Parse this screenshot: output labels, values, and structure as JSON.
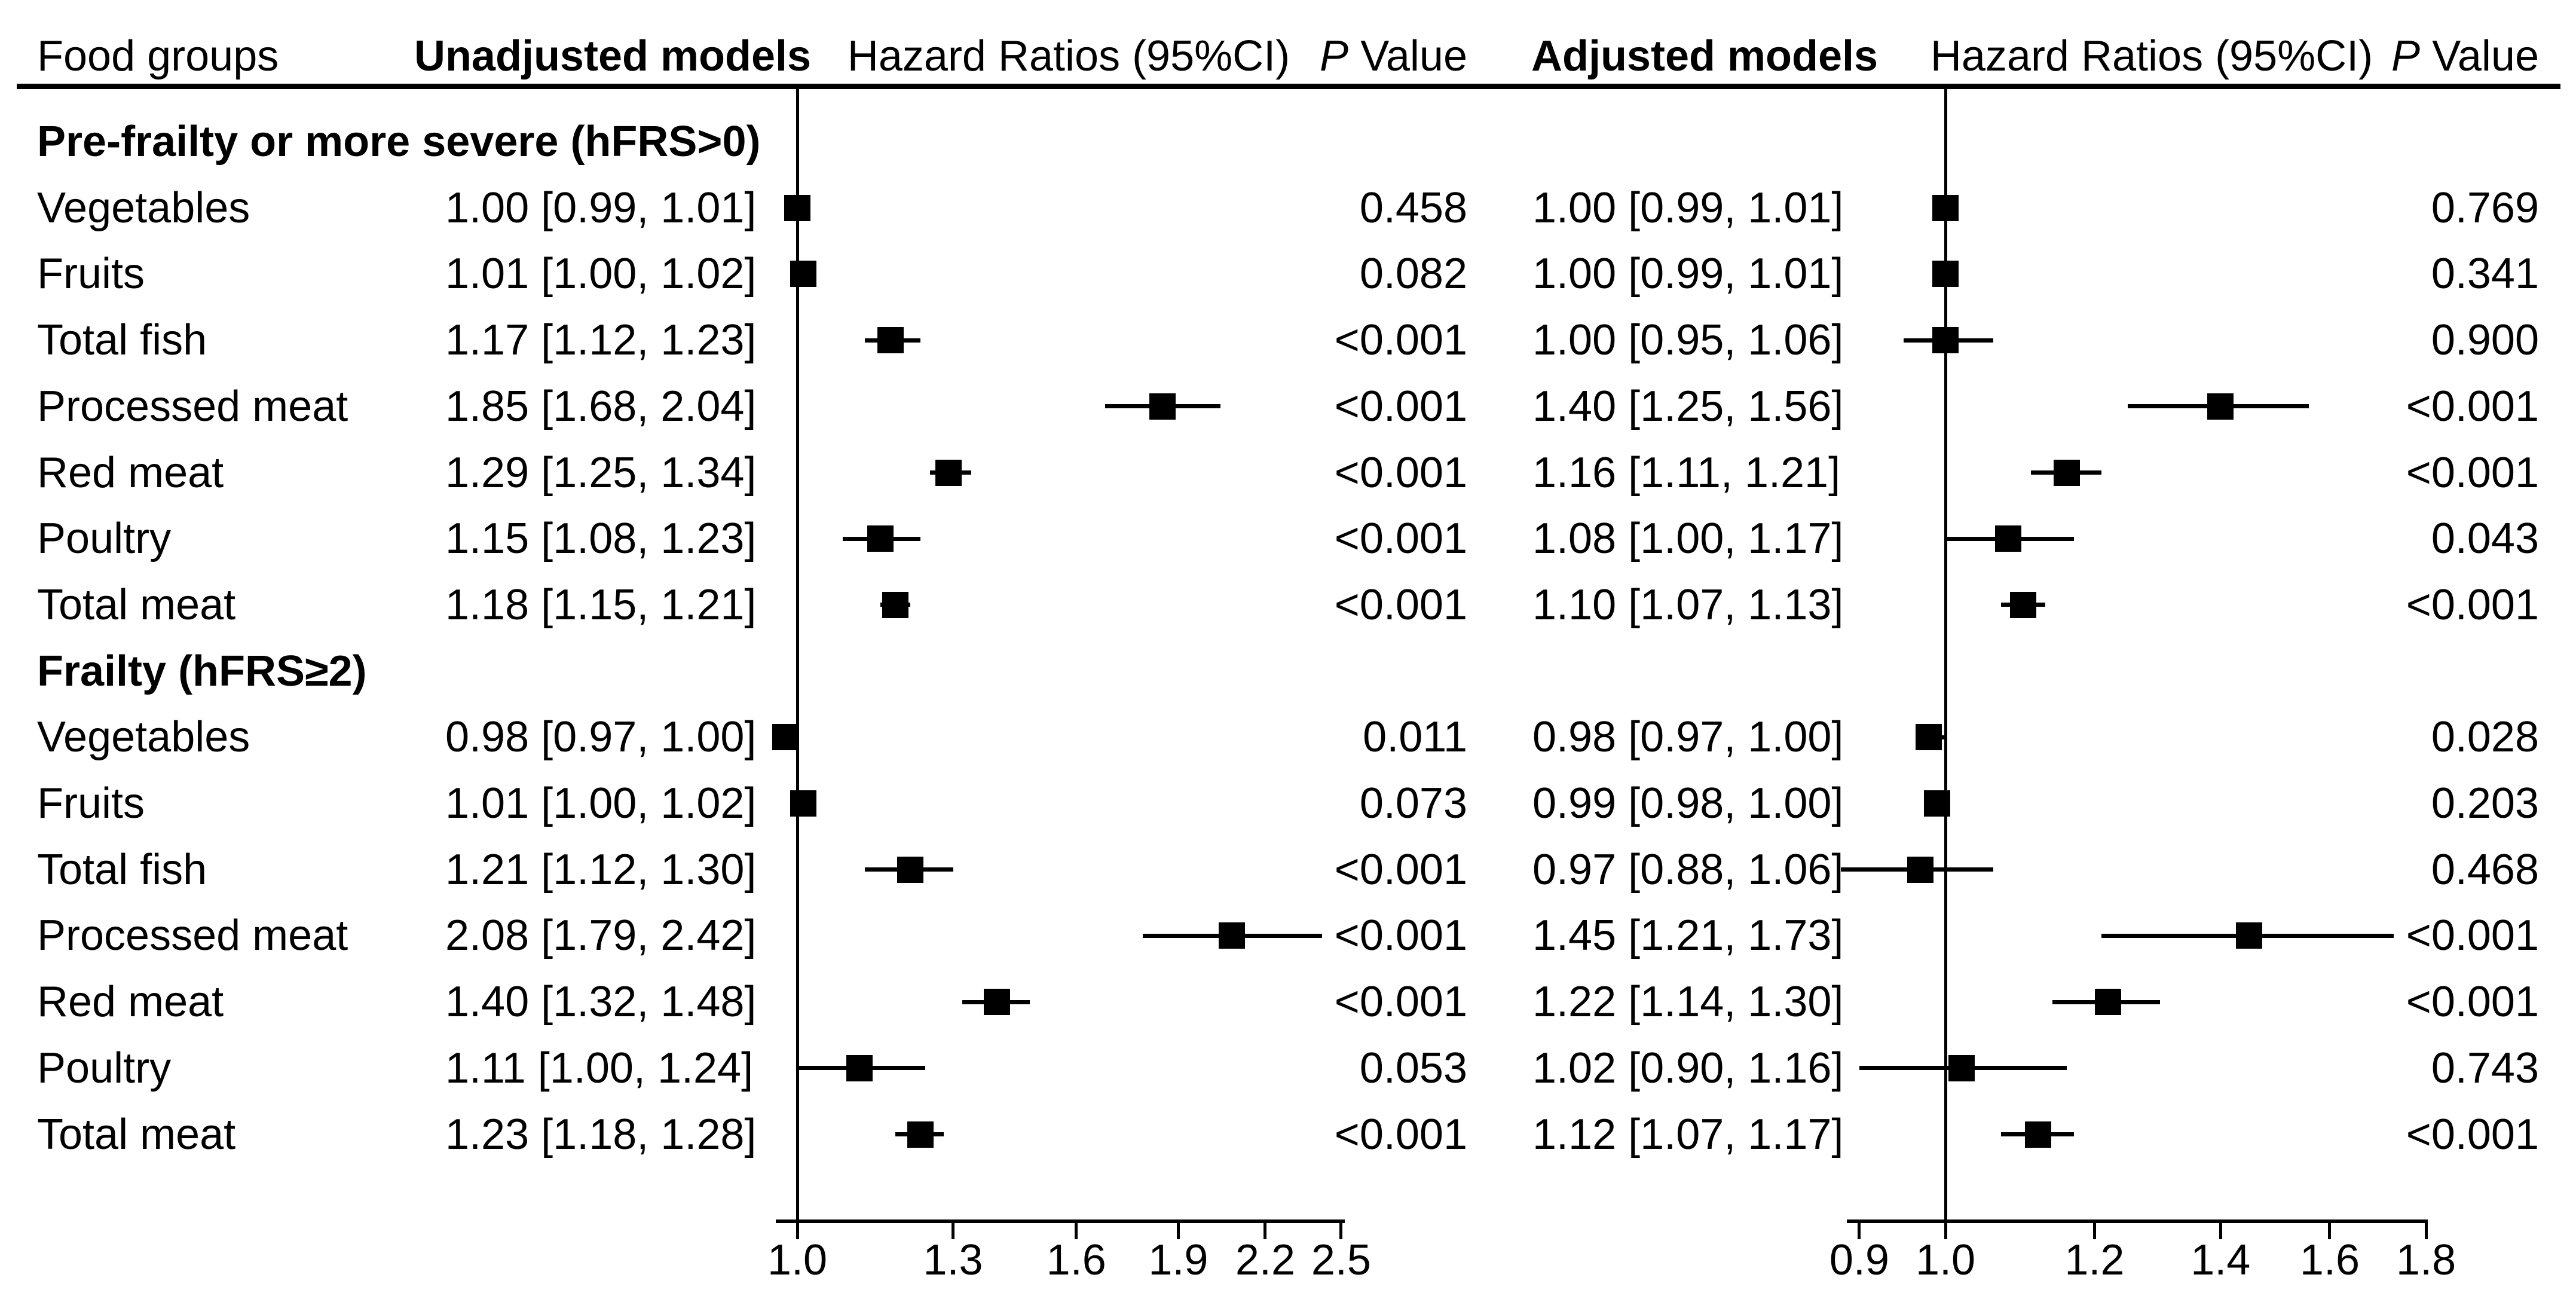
{
  "header": {
    "food_groups": "Food groups",
    "unadjusted_models": "Unadjusted models",
    "hazard_ratios": "Hazard Ratios (95%CI)",
    "p_italic": "P",
    "p_rest": "Value",
    "adjusted_models": "Adjusted models"
  },
  "chart_data": {
    "type": "forest",
    "orientation": "horizontal",
    "marker": "black-square",
    "sections": [
      {
        "title": "Pre-frailty or more severe (hFRS>0)",
        "rows": [
          {
            "food_group": "Vegetables",
            "unadjusted": {
              "label": "1.00 [0.99, 1.01]",
              "hr": 1.0,
              "lo": 0.99,
              "hi": 1.01,
              "p": "0.458"
            },
            "adjusted": {
              "label": "1.00 [0.99, 1.01]",
              "hr": 1.0,
              "lo": 0.99,
              "hi": 1.01,
              "p": "0.769"
            }
          },
          {
            "food_group": "Fruits",
            "unadjusted": {
              "label": "1.01 [1.00, 1.02]",
              "hr": 1.01,
              "lo": 1.0,
              "hi": 1.02,
              "p": "0.082"
            },
            "adjusted": {
              "label": "1.00 [0.99, 1.01]",
              "hr": 1.0,
              "lo": 0.99,
              "hi": 1.01,
              "p": "0.341"
            }
          },
          {
            "food_group": "Total fish",
            "unadjusted": {
              "label": "1.17 [1.12, 1.23]",
              "hr": 1.17,
              "lo": 1.12,
              "hi": 1.23,
              "p": "<0.001"
            },
            "adjusted": {
              "label": "1.00 [0.95, 1.06]",
              "hr": 1.0,
              "lo": 0.95,
              "hi": 1.06,
              "p": "0.900"
            }
          },
          {
            "food_group": "Processed meat",
            "unadjusted": {
              "label": "1.85 [1.68, 2.04]",
              "hr": 1.85,
              "lo": 1.68,
              "hi": 2.04,
              "p": "<0.001"
            },
            "adjusted": {
              "label": "1.40 [1.25, 1.56]",
              "hr": 1.4,
              "lo": 1.25,
              "hi": 1.56,
              "p": "<0.001"
            }
          },
          {
            "food_group": "Red meat",
            "unadjusted": {
              "label": "1.29 [1.25, 1.34]",
              "hr": 1.29,
              "lo": 1.25,
              "hi": 1.34,
              "p": "<0.001"
            },
            "adjusted": {
              "label": "1.16 [1.11, 1.21]",
              "hr": 1.16,
              "lo": 1.11,
              "hi": 1.21,
              "p": "<0.001"
            }
          },
          {
            "food_group": "Poultry",
            "unadjusted": {
              "label": "1.15 [1.08, 1.23]",
              "hr": 1.15,
              "lo": 1.08,
              "hi": 1.23,
              "p": "<0.001"
            },
            "adjusted": {
              "label": "1.08 [1.00, 1.17]",
              "hr": 1.08,
              "lo": 1.0,
              "hi": 1.17,
              "p": "0.043"
            }
          },
          {
            "food_group": "Total meat",
            "unadjusted": {
              "label": "1.18 [1.15, 1.21]",
              "hr": 1.18,
              "lo": 1.15,
              "hi": 1.21,
              "p": "<0.001"
            },
            "adjusted": {
              "label": "1.10 [1.07, 1.13]",
              "hr": 1.1,
              "lo": 1.07,
              "hi": 1.13,
              "p": "<0.001"
            }
          }
        ]
      },
      {
        "title": "Frailty (hFRS≥2)",
        "rows": [
          {
            "food_group": "Vegetables",
            "unadjusted": {
              "label": "0.98 [0.97, 1.00]",
              "hr": 0.98,
              "lo": 0.97,
              "hi": 1.0,
              "p": "0.011"
            },
            "adjusted": {
              "label": "0.98 [0.97, 1.00]",
              "hr": 0.98,
              "lo": 0.97,
              "hi": 1.0,
              "p": "0.028"
            }
          },
          {
            "food_group": "Fruits",
            "unadjusted": {
              "label": "1.01 [1.00, 1.02]",
              "hr": 1.01,
              "lo": 1.0,
              "hi": 1.02,
              "p": "0.073"
            },
            "adjusted": {
              "label": "0.99 [0.98, 1.00]",
              "hr": 0.99,
              "lo": 0.98,
              "hi": 1.0,
              "p": "0.203"
            }
          },
          {
            "food_group": "Total fish",
            "unadjusted": {
              "label": "1.21 [1.12, 1.30]",
              "hr": 1.21,
              "lo": 1.12,
              "hi": 1.3,
              "p": "<0.001"
            },
            "adjusted": {
              "label": "0.97 [0.88, 1.06]",
              "hr": 0.97,
              "lo": 0.88,
              "hi": 1.06,
              "p": "0.468"
            }
          },
          {
            "food_group": "Processed meat",
            "unadjusted": {
              "label": "2.08 [1.79, 2.42]",
              "hr": 2.08,
              "lo": 1.79,
              "hi": 2.42,
              "p": "<0.001"
            },
            "adjusted": {
              "label": "1.45 [1.21, 1.73]",
              "hr": 1.45,
              "lo": 1.21,
              "hi": 1.73,
              "p": "<0.001"
            }
          },
          {
            "food_group": "Red meat",
            "unadjusted": {
              "label": "1.40 [1.32, 1.48]",
              "hr": 1.4,
              "lo": 1.32,
              "hi": 1.48,
              "p": "<0.001"
            },
            "adjusted": {
              "label": "1.22 [1.14, 1.30]",
              "hr": 1.22,
              "lo": 1.14,
              "hi": 1.3,
              "p": "<0.001"
            }
          },
          {
            "food_group": "Poultry",
            "unadjusted": {
              "label": "1.11 [1.00, 1.24]",
              "hr": 1.11,
              "lo": 1.0,
              "hi": 1.24,
              "p": "0.053"
            },
            "adjusted": {
              "label": "1.02 [0.90, 1.16]",
              "hr": 1.02,
              "lo": 0.9,
              "hi": 1.16,
              "p": "0.743"
            }
          },
          {
            "food_group": "Total meat",
            "unadjusted": {
              "label": "1.23 [1.18, 1.28]",
              "hr": 1.23,
              "lo": 1.18,
              "hi": 1.28,
              "p": "<0.001"
            },
            "adjusted": {
              "label": "1.12 [1.07, 1.17]",
              "hr": 1.12,
              "lo": 1.07,
              "hi": 1.17,
              "p": "<0.001"
            }
          }
        ]
      }
    ],
    "axes": {
      "left": {
        "scale": "log",
        "ref_line": 1.0,
        "ticks": [
          1.0,
          1.3,
          1.6,
          1.9,
          2.2,
          2.5
        ],
        "tick_labels": [
          "1.0",
          "1.3",
          "1.6",
          "1.9",
          "2.2",
          "2.5"
        ],
        "range": [
          0.96,
          2.5
        ]
      },
      "right": {
        "scale": "log",
        "ref_line": 1.0,
        "ticks": [
          0.9,
          1.0,
          1.2,
          1.4,
          1.6,
          1.8
        ],
        "tick_labels": [
          "0.9",
          "1.0",
          "1.2",
          "1.4",
          "1.6",
          "1.8"
        ],
        "range": [
          0.89,
          1.81
        ]
      }
    },
    "colors": {
      "marker": "#000000",
      "text": "#000000",
      "background": "#ffffff"
    }
  }
}
